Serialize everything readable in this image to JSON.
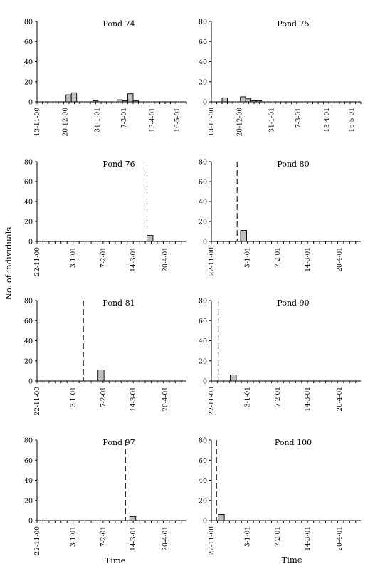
{
  "figure": {
    "ylabel": "No. of individuals",
    "xlabels": [
      "Time",
      "Time"
    ]
  },
  "chart_data": [
    {
      "type": "bar",
      "title": "Pond 74",
      "ylim": [
        0,
        80
      ],
      "yticks": [
        0,
        20,
        40,
        60,
        80
      ],
      "xtick_labels": [
        "13-11-00",
        "20-12-00",
        "31-1-01",
        "7-3-01",
        "13-4-01",
        "16-5-01"
      ],
      "xlim": [
        "2000-11-13",
        "2001-05-28"
      ],
      "bars": [
        {
          "date": "2000-12-21",
          "value": 7
        },
        {
          "date": "2000-12-28",
          "value": 9
        },
        {
          "date": "2001-01-25",
          "value": 1
        },
        {
          "date": "2001-02-26",
          "value": 2
        },
        {
          "date": "2001-03-05",
          "value": 1
        },
        {
          "date": "2001-03-12",
          "value": 8
        },
        {
          "date": "2001-03-19",
          "value": 1
        }
      ],
      "dashed_line": null
    },
    {
      "type": "bar",
      "title": "Pond 75",
      "ylim": [
        0,
        80
      ],
      "yticks": [
        0,
        20,
        40,
        60,
        80
      ],
      "xtick_labels": [
        "13-11-00",
        "20-12-00",
        "31-1-01",
        "7-3-01",
        "13-4-01",
        "16-5-01"
      ],
      "xlim": [
        "2000-11-13",
        "2001-05-28"
      ],
      "bars": [
        {
          "date": "2000-11-27",
          "value": 4
        },
        {
          "date": "2000-12-21",
          "value": 5
        },
        {
          "date": "2000-12-28",
          "value": 3
        },
        {
          "date": "2001-01-04",
          "value": 1
        },
        {
          "date": "2001-01-11",
          "value": 1
        }
      ],
      "dashed_line": null
    },
    {
      "type": "bar",
      "title": "Pond 76",
      "ylim": [
        0,
        80
      ],
      "yticks": [
        0,
        20,
        40,
        60,
        80
      ],
      "xtick_labels": [
        "22-11-00",
        "3-1-01",
        "7-2-01",
        "14-3-01",
        "20-4-01"
      ],
      "xlim": [
        "2000-11-22",
        "2001-05-15"
      ],
      "bars": [
        {
          "date": "2001-03-30",
          "value": 6
        }
      ],
      "dashed_line": "2001-03-30"
    },
    {
      "type": "bar",
      "title": "Pond 80",
      "ylim": [
        0,
        80
      ],
      "yticks": [
        0,
        20,
        40,
        60,
        80
      ],
      "xtick_labels": [
        "22-11-00",
        "3-1-01",
        "7-2-01",
        "14-3-01",
        "20-4-01"
      ],
      "xlim": [
        "2000-11-22",
        "2001-05-15"
      ],
      "bars": [
        {
          "date": "2000-12-26",
          "value": 11
        }
      ],
      "dashed_line": "2000-12-22"
    },
    {
      "type": "bar",
      "title": "Pond 81",
      "ylim": [
        0,
        80
      ],
      "yticks": [
        0,
        20,
        40,
        60,
        80
      ],
      "xtick_labels": [
        "22-11-00",
        "3-1-01",
        "7-2-01",
        "14-3-01",
        "20-4-01"
      ],
      "xlim": [
        "2000-11-22",
        "2001-05-15"
      ],
      "bars": [
        {
          "date": "2001-02-01",
          "value": 11
        }
      ],
      "dashed_line": "2001-01-15"
    },
    {
      "type": "bar",
      "title": "Pond 90",
      "ylim": [
        0,
        80
      ],
      "yticks": [
        0,
        20,
        40,
        60,
        80
      ],
      "xtick_labels": [
        "22-11-00",
        "3-1-01",
        "7-2-01",
        "14-3-01",
        "20-4-01"
      ],
      "xlim": [
        "2000-11-22",
        "2001-05-15"
      ],
      "bars": [
        {
          "date": "2000-12-14",
          "value": 6
        }
      ],
      "dashed_line": "2000-11-30"
    },
    {
      "type": "bar",
      "title": "Pond 97",
      "ylim": [
        0,
        80
      ],
      "yticks": [
        0,
        20,
        40,
        60,
        80
      ],
      "xtick_labels": [
        "22-11-00",
        "3-1-01",
        "7-2-01",
        "14-3-01",
        "20-4-01"
      ],
      "xlim": [
        "2000-11-22",
        "2001-05-15"
      ],
      "bars": [
        {
          "date": "2001-03-10",
          "value": 4
        }
      ],
      "dashed_line": "2001-03-05"
    },
    {
      "type": "bar",
      "title": "Pond 100",
      "ylim": [
        0,
        80
      ],
      "yticks": [
        0,
        20,
        40,
        60,
        80
      ],
      "xtick_labels": [
        "22-11-00",
        "3-1-01",
        "7-2-01",
        "14-3-01",
        "20-4-01"
      ],
      "xlim": [
        "2000-11-22",
        "2001-05-15"
      ],
      "bars": [
        {
          "date": "2000-11-30",
          "value": 6
        }
      ],
      "dashed_line": "2000-11-28"
    }
  ]
}
